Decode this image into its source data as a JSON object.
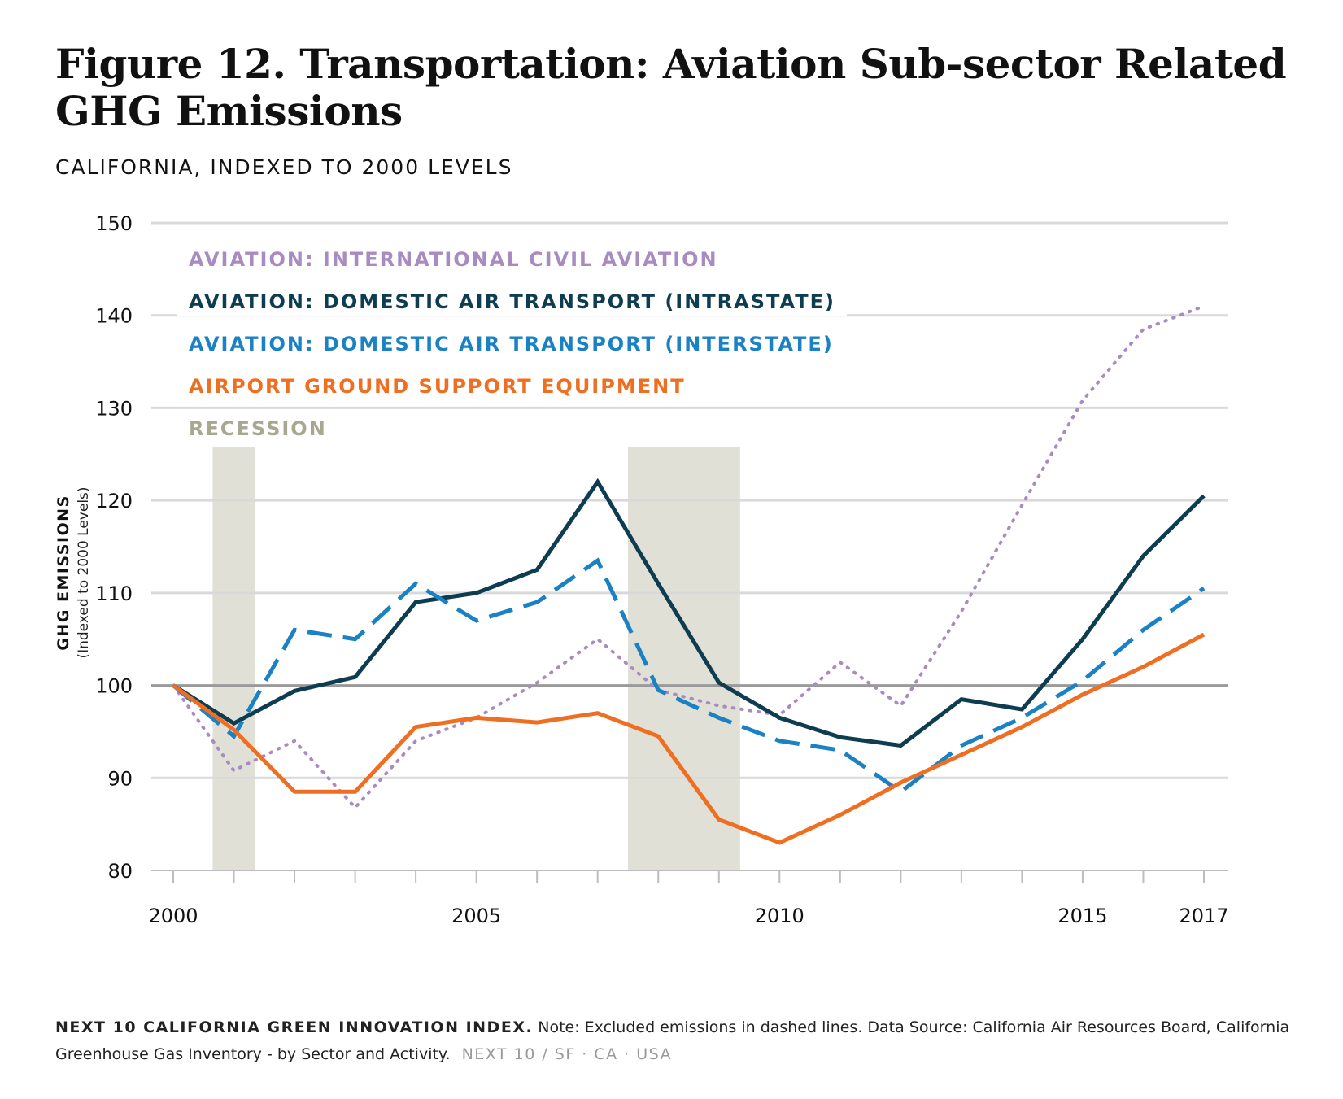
{
  "title": "Figure 12. Transportation: Aviation Sub-sector Related GHG Emissions",
  "subtitle": "CALIFORNIA, INDEXED TO 2000 LEVELS",
  "footer": {
    "source_name": "NEXT 10 CALIFORNIA GREEN INNOVATION INDEX.",
    "note": "Note: Excluded emissions in dashed lines. Data Source: California Air Resources Board, California Greenhouse Gas Inventory - by Sector and Activity.",
    "brand": "NEXT 10  /  SF · CA · USA"
  },
  "chart_data": {
    "type": "line",
    "xlabel": "",
    "ylabel": "GHG EMISSIONS",
    "ylabel_sub": "(Indexed to 2000 Levels)",
    "ylim": [
      80,
      150
    ],
    "yticks": [
      80,
      90,
      100,
      110,
      120,
      130,
      140,
      150
    ],
    "xlim": [
      2000,
      2017
    ],
    "xtick_labels": [
      {
        "x": 2000,
        "label": "2000"
      },
      {
        "x": 2005,
        "label": "2005"
      },
      {
        "x": 2010,
        "label": "2010"
      },
      {
        "x": 2015,
        "label": "2015"
      },
      {
        "x": 2017,
        "label": "2017"
      }
    ],
    "baseline": 100,
    "grid": true,
    "legend_position": "top-left",
    "x": [
      2000,
      2001,
      2002,
      2003,
      2004,
      2005,
      2006,
      2007,
      2008,
      2009,
      2010,
      2011,
      2012,
      2013,
      2014,
      2015,
      2016,
      2017
    ],
    "series": [
      {
        "name": "AVIATION: INTERNATIONAL CIVIL AVIATION",
        "color": "#a88bc0",
        "style": "dotted",
        "values": [
          100,
          90.8,
          94,
          86.8,
          94,
          96.5,
          100.3,
          105,
          99.5,
          97.8,
          96.8,
          102.5,
          97.8,
          108,
          119.5,
          130.8,
          138.5,
          141
        ]
      },
      {
        "name": "AVIATION: DOMESTIC AIR TRANSPORT (INTRASTATE)",
        "color": "#0e3d52",
        "style": "solid",
        "values": [
          100,
          95.9,
          99.4,
          100.9,
          109,
          110,
          112.5,
          122,
          111,
          100.3,
          96.5,
          94.4,
          93.5,
          98.5,
          97.4,
          105,
          114,
          120.5
        ]
      },
      {
        "name": "AVIATION: DOMESTIC AIR TRANSPORT (INTERSTATE)",
        "color": "#1a82c4",
        "style": "dashed",
        "values": [
          100,
          94.5,
          106,
          105,
          111,
          107,
          109,
          113.5,
          99.5,
          96.5,
          94,
          93,
          88.5,
          93.5,
          96.5,
          100.5,
          106,
          110.5
        ]
      },
      {
        "name": "AIRPORT GROUND SUPPORT EQUIPMENT",
        "color": "#ef6f22",
        "style": "solid",
        "values": [
          100,
          95.2,
          88.5,
          88.5,
          95.5,
          96.5,
          96,
          97,
          94.5,
          85.5,
          83,
          86,
          89.5,
          92.5,
          95.5,
          99,
          102,
          105.5
        ]
      }
    ],
    "recession": {
      "name": "RECESSION",
      "color": "#e1e0d6",
      "periods": [
        [
          2000.65,
          2001.35
        ],
        [
          2007.5,
          2009.35
        ]
      ]
    }
  }
}
